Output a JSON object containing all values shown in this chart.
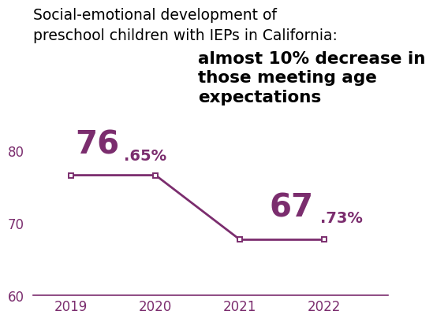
{
  "years": [
    2019,
    2020,
    2021,
    2022
  ],
  "values": [
    76.65,
    76.65,
    67.73,
    67.73
  ],
  "line_color": "#7B2D6E",
  "title_line1": "Social-emotional development of",
  "title_line2": "preschool children with IEPs in California:",
  "subtitle_line1": "almost 10% decrease in",
  "subtitle_line2": "those meeting age",
  "subtitle_line3": "expectations",
  "label1_big": "76",
  "label1_small": ".65%",
  "label2_big": "67",
  "label2_small": ".73%",
  "ylim": [
    60,
    82
  ],
  "yticks": [
    60,
    70,
    80
  ],
  "bg_color": "#ffffff",
  "title_fontsize": 13.5,
  "subtitle_fontsize": 15.5,
  "label_big_fontsize": 29,
  "label_small_fontsize": 14
}
